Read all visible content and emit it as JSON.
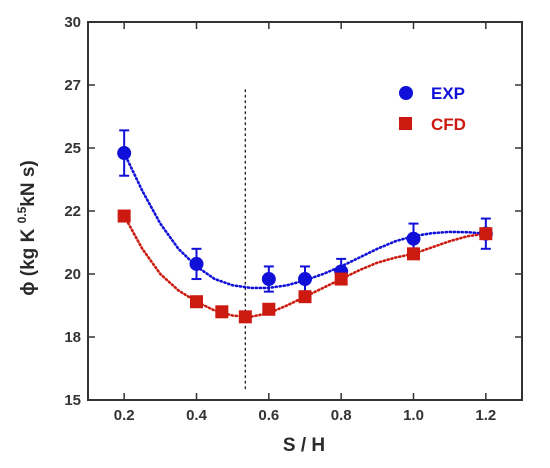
{
  "chart_data": {
    "type": "scatter",
    "title": "",
    "xlabel": "S / H",
    "ylabel": "ϕ (kg K 0.5kN s)",
    "ylabel_parts": {
      "main": "ϕ (kg K ",
      "sup": "0.5",
      "rest": "kN s)"
    },
    "xlim": [
      0.1,
      1.3
    ],
    "ylim": [
      15,
      30
    ],
    "x_ticks": [
      0.2,
      0.4,
      0.6,
      0.8,
      1.0,
      1.2
    ],
    "x_tick_labels": [
      "0.2",
      "0.4",
      "0.6",
      "0.8",
      "1.0",
      "1.2"
    ],
    "y_ticks": [
      15,
      17.5,
      20,
      22.5,
      25,
      27.5,
      30
    ],
    "y_tick_labels": [
      "15",
      "18",
      "20",
      "22",
      "25",
      "27",
      "30"
    ],
    "vertical_reference_line": 0.535,
    "grid": false,
    "legend_position": "top-right",
    "series": [
      {
        "name": "EXP",
        "marker": "circle",
        "color": "#1010d8",
        "x": [
          0.2,
          0.4,
          0.6,
          0.7,
          0.8,
          1.0,
          1.2
        ],
        "y": [
          24.8,
          20.4,
          19.8,
          19.8,
          20.1,
          21.4,
          21.6
        ],
        "error": [
          0.9,
          0.6,
          0.5,
          0.5,
          0.5,
          0.6,
          0.6
        ],
        "curve_x": [
          0.2,
          0.25,
          0.3,
          0.35,
          0.4,
          0.45,
          0.5,
          0.55,
          0.6,
          0.65,
          0.7,
          0.75,
          0.8,
          0.85,
          0.9,
          0.95,
          1.0,
          1.05,
          1.1,
          1.15,
          1.2
        ],
        "curve_y": [
          24.8,
          23.3,
          22.0,
          21.0,
          20.3,
          19.8,
          19.55,
          19.45,
          19.45,
          19.55,
          19.75,
          20.0,
          20.3,
          20.65,
          21.0,
          21.3,
          21.5,
          21.62,
          21.67,
          21.66,
          21.6
        ]
      },
      {
        "name": "CFD",
        "marker": "square",
        "color": "#cc1a10",
        "x": [
          0.2,
          0.4,
          0.47,
          0.535,
          0.6,
          0.7,
          0.8,
          1.0,
          1.2
        ],
        "y": [
          22.3,
          18.9,
          18.5,
          18.3,
          18.6,
          19.1,
          19.8,
          20.8,
          21.6
        ],
        "error": [
          0,
          0,
          0,
          0,
          0,
          0,
          0,
          0,
          0
        ],
        "curve_x": [
          0.2,
          0.25,
          0.3,
          0.35,
          0.4,
          0.45,
          0.5,
          0.55,
          0.6,
          0.65,
          0.7,
          0.75,
          0.8,
          0.85,
          0.9,
          0.95,
          1.0,
          1.05,
          1.1,
          1.15,
          1.2
        ],
        "curve_y": [
          22.3,
          21.0,
          20.0,
          19.35,
          18.9,
          18.55,
          18.35,
          18.3,
          18.45,
          18.75,
          19.1,
          19.45,
          19.8,
          20.15,
          20.45,
          20.65,
          20.8,
          21.05,
          21.3,
          21.5,
          21.6
        ]
      }
    ]
  }
}
